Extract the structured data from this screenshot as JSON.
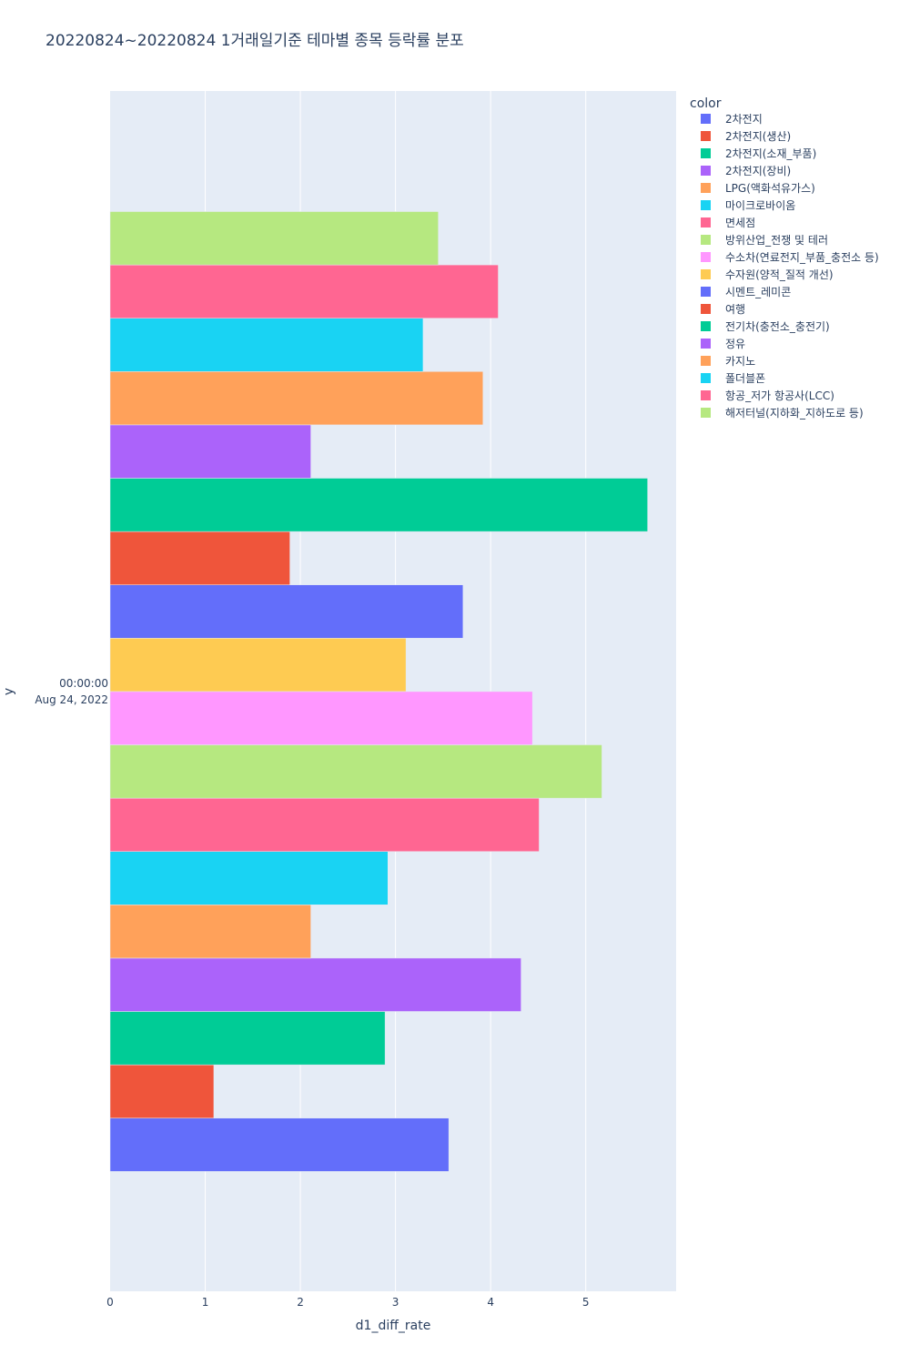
{
  "chart_data": {
    "type": "bar",
    "orientation": "horizontal",
    "title": "20220824~20220824 1거래일기준 테마별 종목 등락률 분포",
    "xlabel": "d1_diff_rate",
    "ylabel": "y",
    "xlim": [
      0,
      5.95
    ],
    "xticks": [
      0,
      1,
      2,
      3,
      4,
      5
    ],
    "ytick_label_line1": "00:00:00",
    "ytick_label_line2": "Aug 24, 2022",
    "legend_title": "color",
    "legend_position": "top-right",
    "series": [
      {
        "name": "2차전지",
        "color": "#636EFA",
        "value": 3.56
      },
      {
        "name": "2차전지(생산)",
        "color": "#EF553B",
        "value": 1.09
      },
      {
        "name": "2차전지(소재_부품)",
        "color": "#00CC96",
        "value": 2.89
      },
      {
        "name": "2차전지(장비)",
        "color": "#AB63FA",
        "value": 4.32
      },
      {
        "name": "LPG(액화석유가스)",
        "color": "#FFA15A",
        "value": 2.11
      },
      {
        "name": "마이크로바이옴",
        "color": "#19D3F3",
        "value": 2.92
      },
      {
        "name": "면세점",
        "color": "#FF6692",
        "value": 4.51
      },
      {
        "name": "방위산업_전쟁 및 테러",
        "color": "#B6E880",
        "value": 5.17
      },
      {
        "name": "수소차(연료전지_부품_충전소 등)",
        "color": "#FF97FF",
        "value": 4.44
      },
      {
        "name": "수자원(양적_질적 개선)",
        "color": "#FECB52",
        "value": 3.11
      },
      {
        "name": "시멘트_레미콘",
        "color": "#636EFA",
        "value": 3.71
      },
      {
        "name": "여행",
        "color": "#EF553B",
        "value": 1.89
      },
      {
        "name": "전기차(충전소_충전기)",
        "color": "#00CC96",
        "value": 5.65
      },
      {
        "name": "정유",
        "color": "#AB63FA",
        "value": 2.11
      },
      {
        "name": "카지노",
        "color": "#FFA15A",
        "value": 3.92
      },
      {
        "name": "폴더블폰",
        "color": "#19D3F3",
        "value": 3.29
      },
      {
        "name": "항공_저가 항공사(LCC)",
        "color": "#FF6692",
        "value": 4.08
      },
      {
        "name": "해저터널(지하화_지하도로 등)",
        "color": "#B6E880",
        "value": 3.45
      }
    ],
    "grid": true
  }
}
